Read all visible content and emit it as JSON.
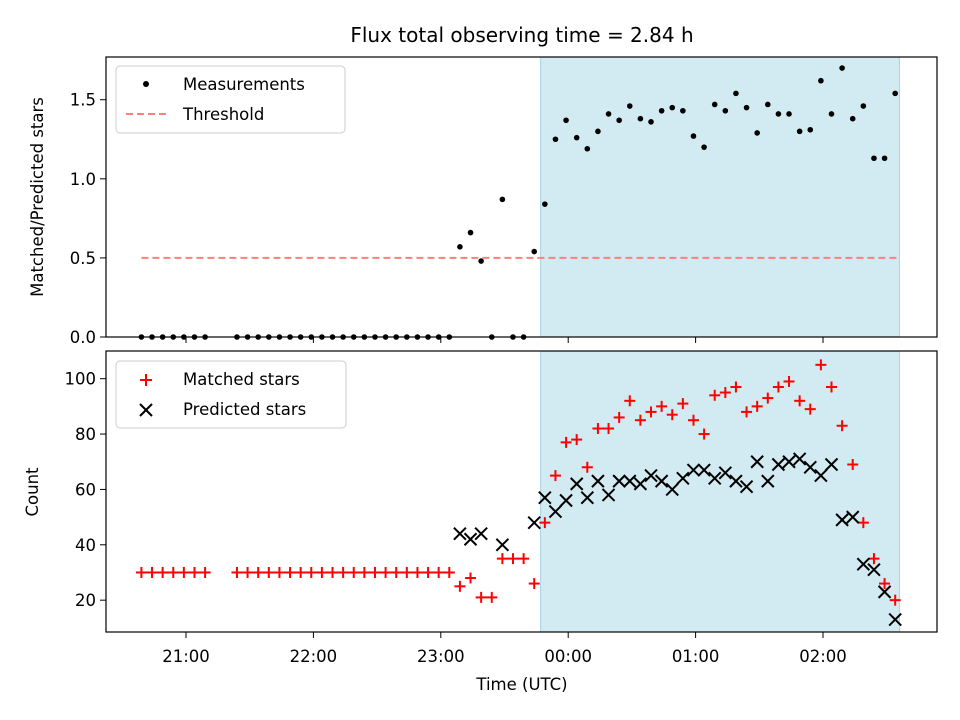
{
  "title": "Flux total observing time = 2.84 h",
  "colors": {
    "shade": "#add8e6",
    "threshold": "#ff7f7f",
    "measurements": "#000000",
    "matched": "#ff0000",
    "predicted": "#000000"
  },
  "chart_data": [
    {
      "type": "scatter",
      "panel": "top",
      "ylabel": "Matched/Predicted stars",
      "xlabel": "",
      "ylim": [
        0,
        1.77
      ],
      "yticks": [
        "0.0",
        "0.5",
        "1.0",
        "1.5"
      ],
      "legend_position": "upper-left",
      "shaded_interval": [
        "23:47",
        "02:36"
      ],
      "series": [
        {
          "name": "Measurements",
          "marker": "dot",
          "points": [
            [
              "20:39",
              0
            ],
            [
              "20:44",
              0
            ],
            [
              "20:49",
              0
            ],
            [
              "20:54",
              0
            ],
            [
              "20:59",
              0
            ],
            [
              "21:04",
              0
            ],
            [
              "21:09",
              0
            ],
            [
              "21:24",
              0
            ],
            [
              "21:29",
              0
            ],
            [
              "21:34",
              0
            ],
            [
              "21:39",
              0
            ],
            [
              "21:44",
              0
            ],
            [
              "21:49",
              0
            ],
            [
              "21:54",
              0
            ],
            [
              "21:59",
              0
            ],
            [
              "22:04",
              0
            ],
            [
              "22:09",
              0
            ],
            [
              "22:14",
              0
            ],
            [
              "22:19",
              0
            ],
            [
              "22:24",
              0
            ],
            [
              "22:29",
              0
            ],
            [
              "22:34",
              0
            ],
            [
              "22:39",
              0
            ],
            [
              "22:44",
              0
            ],
            [
              "22:49",
              0
            ],
            [
              "22:54",
              0
            ],
            [
              "22:59",
              0
            ],
            [
              "23:04",
              0
            ],
            [
              "23:09",
              0.57
            ],
            [
              "23:14",
              0.66
            ],
            [
              "23:19",
              0.48
            ],
            [
              "23:24",
              0
            ],
            [
              "23:29",
              0.87
            ],
            [
              "23:34",
              0
            ],
            [
              "23:39",
              0
            ],
            [
              "23:44",
              0.54
            ],
            [
              "23:49",
              0.84
            ],
            [
              "23:54",
              1.25
            ],
            [
              "23:59",
              1.37
            ],
            [
              "00:04",
              1.26
            ],
            [
              "00:09",
              1.19
            ],
            [
              "00:14",
              1.3
            ],
            [
              "00:19",
              1.41
            ],
            [
              "00:24",
              1.37
            ],
            [
              "00:29",
              1.46
            ],
            [
              "00:34",
              1.38
            ],
            [
              "00:39",
              1.36
            ],
            [
              "00:44",
              1.43
            ],
            [
              "00:49",
              1.45
            ],
            [
              "00:54",
              1.43
            ],
            [
              "00:59",
              1.27
            ],
            [
              "01:04",
              1.2
            ],
            [
              "01:09",
              1.47
            ],
            [
              "01:14",
              1.43
            ],
            [
              "01:19",
              1.54
            ],
            [
              "01:24",
              1.45
            ],
            [
              "01:29",
              1.29
            ],
            [
              "01:34",
              1.47
            ],
            [
              "01:39",
              1.41
            ],
            [
              "01:44",
              1.41
            ],
            [
              "01:49",
              1.3
            ],
            [
              "01:54",
              1.31
            ],
            [
              "01:59",
              1.62
            ],
            [
              "02:04",
              1.41
            ],
            [
              "02:09",
              1.7
            ],
            [
              "02:14",
              1.38
            ],
            [
              "02:19",
              1.46
            ],
            [
              "02:24",
              1.13
            ],
            [
              "02:29",
              1.13
            ],
            [
              "02:34",
              1.54
            ]
          ]
        },
        {
          "name": "Threshold",
          "marker": "dashed-line",
          "x": [
            "20:39",
            "02:36"
          ],
          "value": 0.5
        }
      ]
    },
    {
      "type": "scatter",
      "panel": "bottom",
      "ylabel": "Count",
      "xlabel": "Time (UTC)",
      "ylim": [
        8.5,
        110
      ],
      "yticks": [
        "20",
        "40",
        "60",
        "80",
        "100"
      ],
      "xticks": [
        "21:00",
        "22:00",
        "23:00",
        "00:00",
        "01:00",
        "02:00"
      ],
      "legend_position": "upper-left",
      "shaded_interval": [
        "23:47",
        "02:36"
      ],
      "series": [
        {
          "name": "Matched stars",
          "marker": "plus",
          "points": [
            [
              "20:39",
              30
            ],
            [
              "20:44",
              30
            ],
            [
              "20:49",
              30
            ],
            [
              "20:54",
              30
            ],
            [
              "20:59",
              30
            ],
            [
              "21:04",
              30
            ],
            [
              "21:09",
              30
            ],
            [
              "21:24",
              30
            ],
            [
              "21:29",
              30
            ],
            [
              "21:34",
              30
            ],
            [
              "21:39",
              30
            ],
            [
              "21:44",
              30
            ],
            [
              "21:49",
              30
            ],
            [
              "21:54",
              30
            ],
            [
              "21:59",
              30
            ],
            [
              "22:04",
              30
            ],
            [
              "22:09",
              30
            ],
            [
              "22:14",
              30
            ],
            [
              "22:19",
              30
            ],
            [
              "22:24",
              30
            ],
            [
              "22:29",
              30
            ],
            [
              "22:34",
              30
            ],
            [
              "22:39",
              30
            ],
            [
              "22:44",
              30
            ],
            [
              "22:49",
              30
            ],
            [
              "22:54",
              30
            ],
            [
              "22:59",
              30
            ],
            [
              "23:04",
              30
            ],
            [
              "23:09",
              25
            ],
            [
              "23:14",
              28
            ],
            [
              "23:19",
              21
            ],
            [
              "23:24",
              21
            ],
            [
              "23:29",
              35
            ],
            [
              "23:34",
              35
            ],
            [
              "23:39",
              35
            ],
            [
              "23:44",
              26
            ],
            [
              "23:49",
              48
            ],
            [
              "23:54",
              65
            ],
            [
              "23:59",
              77
            ],
            [
              "00:04",
              78
            ],
            [
              "00:09",
              68
            ],
            [
              "00:14",
              82
            ],
            [
              "00:19",
              82
            ],
            [
              "00:24",
              86
            ],
            [
              "00:29",
              92
            ],
            [
              "00:34",
              85
            ],
            [
              "00:39",
              88
            ],
            [
              "00:44",
              90
            ],
            [
              "00:49",
              87
            ],
            [
              "00:54",
              91
            ],
            [
              "00:59",
              85
            ],
            [
              "01:04",
              80
            ],
            [
              "01:09",
              94
            ],
            [
              "01:14",
              95
            ],
            [
              "01:19",
              97
            ],
            [
              "01:24",
              88
            ],
            [
              "01:29",
              90
            ],
            [
              "01:34",
              93
            ],
            [
              "01:39",
              97
            ],
            [
              "01:44",
              99
            ],
            [
              "01:49",
              92
            ],
            [
              "01:54",
              89
            ],
            [
              "01:59",
              105
            ],
            [
              "02:04",
              97
            ],
            [
              "02:09",
              83
            ],
            [
              "02:14",
              69
            ],
            [
              "02:19",
              48
            ],
            [
              "02:24",
              35
            ],
            [
              "02:29",
              26
            ],
            [
              "02:34",
              20
            ]
          ]
        },
        {
          "name": "Predicted stars",
          "marker": "x",
          "points": [
            [
              "23:09",
              44
            ],
            [
              "23:14",
              42
            ],
            [
              "23:19",
              44
            ],
            [
              "23:29",
              40
            ],
            [
              "23:44",
              48
            ],
            [
              "23:49",
              57
            ],
            [
              "23:54",
              52
            ],
            [
              "23:59",
              56
            ],
            [
              "00:04",
              62
            ],
            [
              "00:09",
              57
            ],
            [
              "00:14",
              63
            ],
            [
              "00:19",
              58
            ],
            [
              "00:24",
              63
            ],
            [
              "00:29",
              63
            ],
            [
              "00:34",
              62
            ],
            [
              "00:39",
              65
            ],
            [
              "00:44",
              63
            ],
            [
              "00:49",
              60
            ],
            [
              "00:54",
              64
            ],
            [
              "00:59",
              67
            ],
            [
              "01:04",
              67
            ],
            [
              "01:09",
              64
            ],
            [
              "01:14",
              66
            ],
            [
              "01:19",
              63
            ],
            [
              "01:24",
              61
            ],
            [
              "01:29",
              70
            ],
            [
              "01:34",
              63
            ],
            [
              "01:39",
              69
            ],
            [
              "01:44",
              70
            ],
            [
              "01:49",
              71
            ],
            [
              "01:54",
              68
            ],
            [
              "01:59",
              65
            ],
            [
              "02:04",
              69
            ],
            [
              "02:09",
              49
            ],
            [
              "02:14",
              50
            ],
            [
              "02:19",
              33
            ],
            [
              "02:24",
              31
            ],
            [
              "02:29",
              23
            ],
            [
              "02:34",
              13
            ]
          ]
        }
      ]
    }
  ]
}
